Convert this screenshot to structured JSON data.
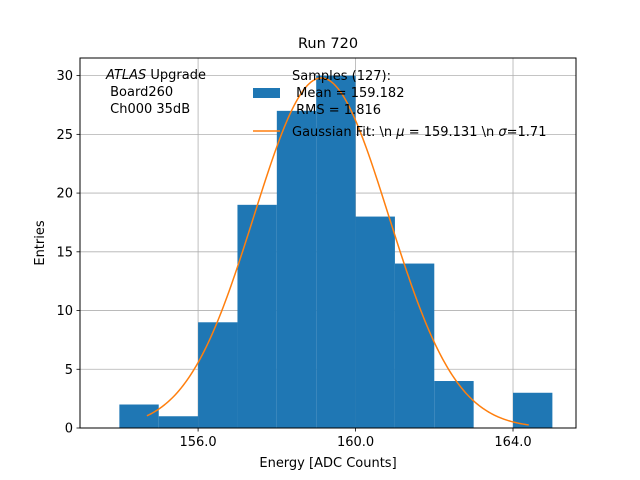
{
  "chart_data": {
    "type": "bar",
    "title": "Run 720",
    "xlabel": "Energy [ADC Counts]",
    "ylabel": "Entries",
    "xlim": [
      153.0,
      165.6
    ],
    "ylim": [
      0,
      31.5
    ],
    "xticks": [
      156.0,
      160.0,
      164.0
    ],
    "xtick_labels": [
      "156.0",
      "160.0",
      "164.0"
    ],
    "yticks": [
      0,
      5,
      10,
      15,
      20,
      25,
      30
    ],
    "ytick_labels": [
      "0",
      "5",
      "10",
      "15",
      "20",
      "25",
      "30"
    ],
    "grid": true,
    "histogram": {
      "name": "Samples (127):",
      "bin_edges": [
        154,
        155,
        156,
        157,
        158,
        159,
        160,
        161,
        162,
        163,
        164,
        165
      ],
      "counts": [
        2,
        1,
        9,
        19,
        27,
        30,
        18,
        14,
        4,
        0,
        3
      ],
      "color": "#1f77b4"
    },
    "fit": {
      "name": "Gaussian Fit",
      "mu": 159.131,
      "sigma": 1.71,
      "amplitude": 29.8,
      "x_range": [
        154.7,
        164.4
      ],
      "color": "#ff7f0e"
    },
    "annotation": {
      "italic": "ATLAS",
      "rest": " Upgrade",
      "line2": " Board260",
      "line3": " Ch000 35dB"
    },
    "legend": {
      "location": "top-right",
      "hist_line1": "Samples (127):",
      "hist_line2": " Mean = 159.182",
      "hist_line3": " RMS = 1.816",
      "fit_prefix": "Gaussian Fit: \\n ",
      "mu_symbol": "μ",
      "fit_mid": " = 159.131 \\n ",
      "sigma_symbol": "σ",
      "fit_end": "=1.71"
    }
  }
}
